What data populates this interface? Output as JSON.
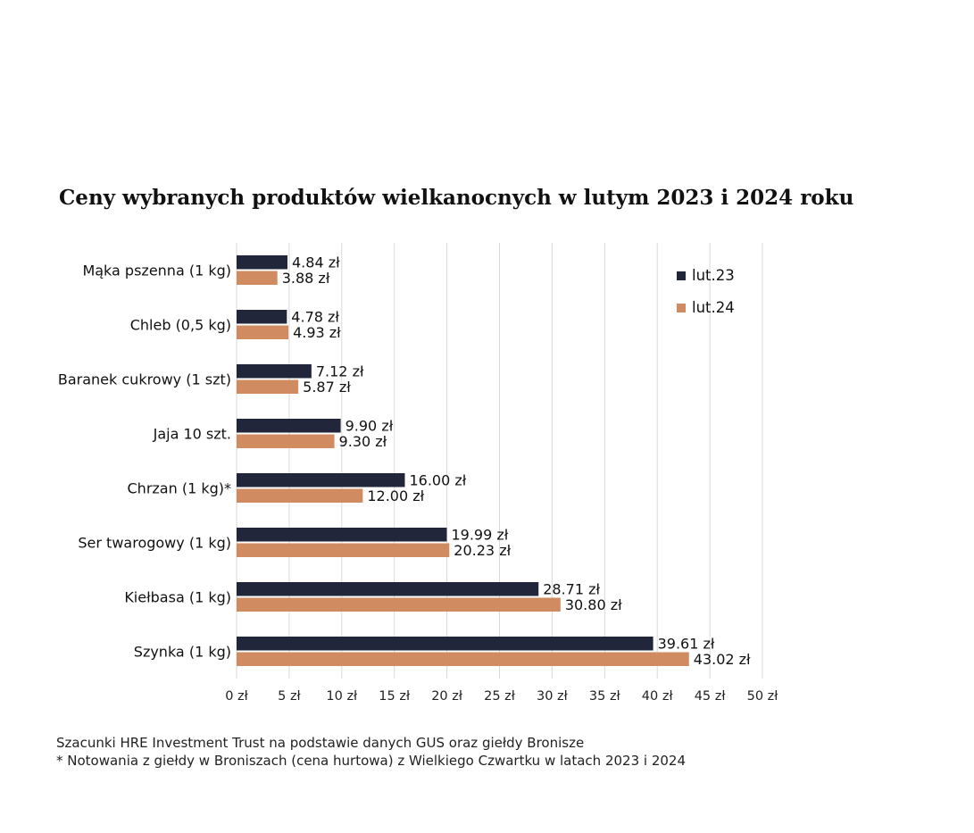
{
  "chart_data": {
    "type": "bar",
    "orientation": "horizontal",
    "title": "Ceny wybranych produktów wielkanocnych w lutym 2023 i 2024 roku",
    "categories": [
      "Mąka pszenna (1 kg)",
      "Chleb (0,5 kg)",
      "Baranek cukrowy (1 szt)",
      "Jaja 10 szt.",
      "Chrzan (1 kg)*",
      "Ser twarogowy (1 kg)",
      "Kiełbasa (1 kg)",
      "Szynka (1 kg)"
    ],
    "series": [
      {
        "name": "lut.23",
        "color": "#22263a",
        "values": [
          4.84,
          4.78,
          7.12,
          9.9,
          16.0,
          19.99,
          28.71,
          39.61
        ],
        "labels": [
          "4.84 zł",
          "4.78 zł",
          "7.12 zł",
          "9.90 zł",
          "16.00 zł",
          "19.99 zł",
          "28.71 zł",
          "39.61 zł"
        ]
      },
      {
        "name": "lut.24",
        "color": "#d08c60",
        "values": [
          3.88,
          4.93,
          5.87,
          9.3,
          12.0,
          20.23,
          30.8,
          43.02
        ],
        "labels": [
          "3.88 zł",
          "4.93 zł",
          "5.87 zł",
          "9.30 zł",
          "12.00 zł",
          "20.23 zł",
          "30.80 zł",
          "43.02 zł"
        ]
      }
    ],
    "xlim": [
      0,
      50
    ],
    "xticks": [
      0,
      5,
      10,
      15,
      20,
      25,
      30,
      35,
      40,
      45,
      50
    ],
    "xtick_labels": [
      "0 zł",
      "5 zł",
      "10 zł",
      "15 zł",
      "20 zł",
      "25 zł",
      "30 zł",
      "35 zł",
      "40 zł",
      "45 zł",
      "50 zł"
    ],
    "grid": "vertical",
    "legend": "top-right"
  },
  "notes": {
    "source": "Szacunki HRE Investment Trust na podstawie danych GUS oraz giełdy Bronisze",
    "footnote": "* Notowania z giełdy w Broniszach (cena hurtowa) z Wielkiego Czwartku w latach 2023 i 2024"
  }
}
